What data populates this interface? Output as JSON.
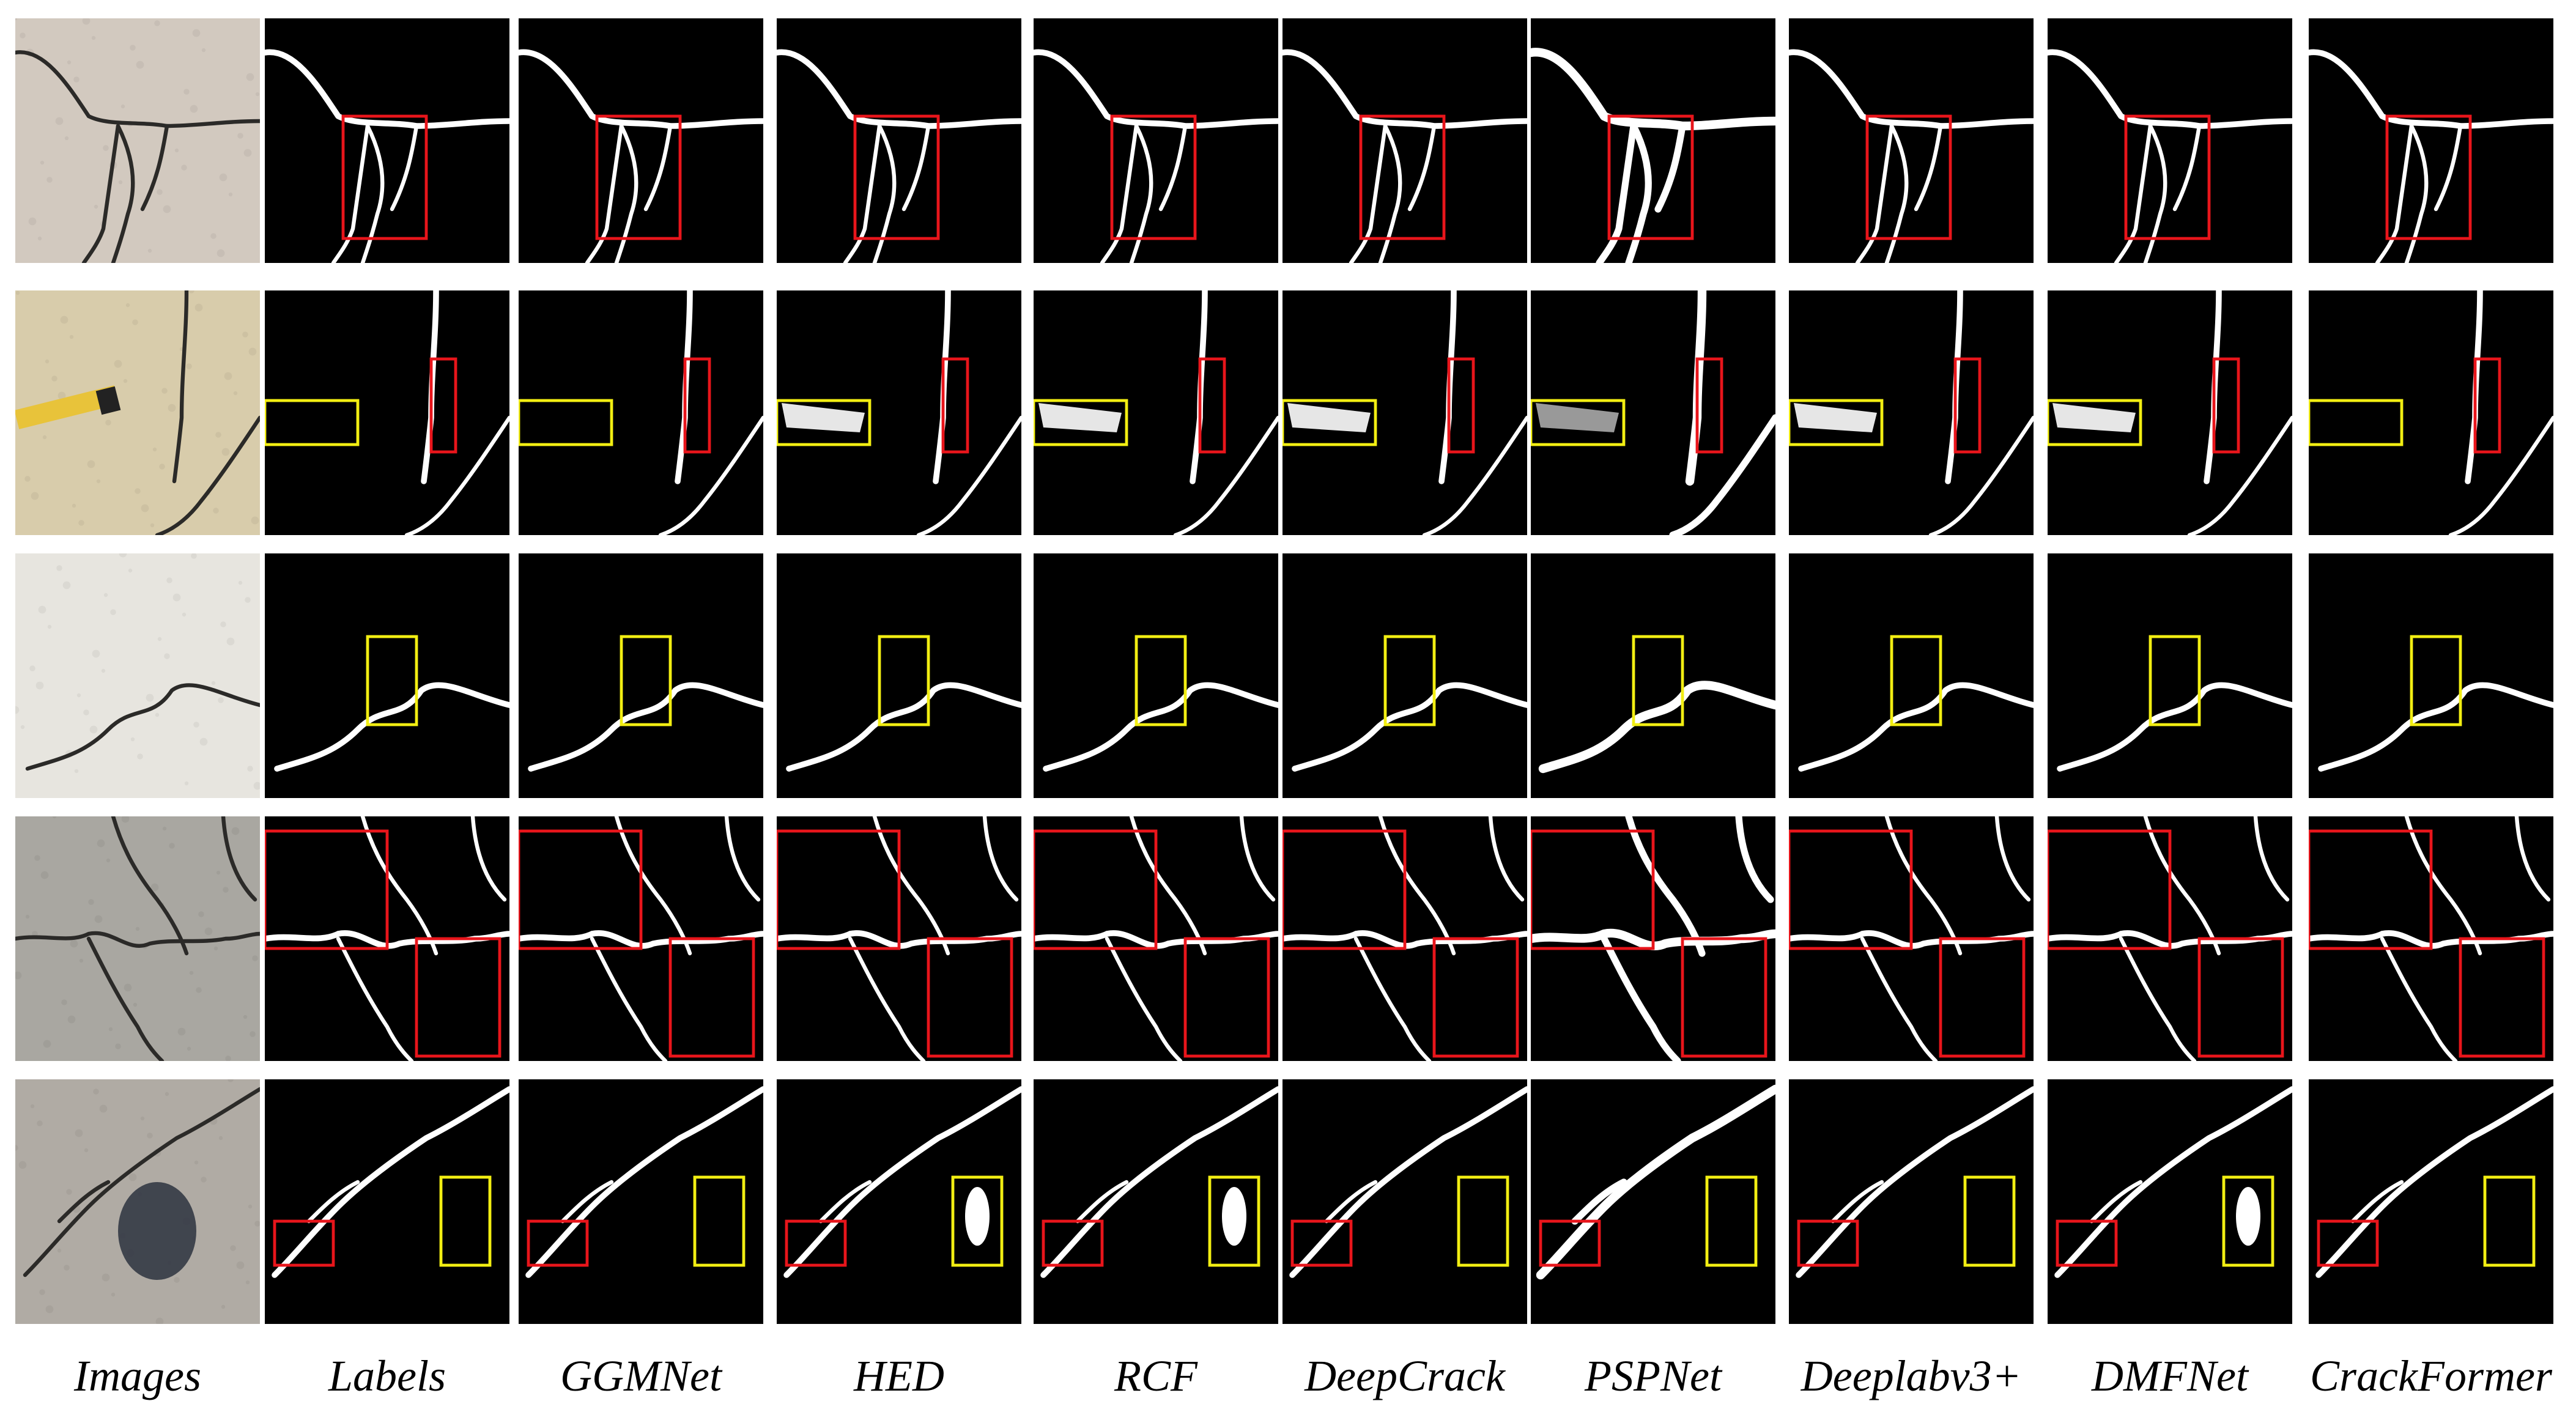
{
  "figure": {
    "columns": [
      "Images",
      "Labels",
      "GGMNet",
      "HED",
      "RCF",
      "DeepCrack",
      "PSPNet",
      "Deeplabv3+",
      "DMFNet",
      "CrackFormer"
    ],
    "rows": [
      {
        "id": "row-1",
        "image_tone": "#d2c9bf",
        "box_color": "#e8151b"
      },
      {
        "id": "row-2",
        "image_tone": "#d8ccab",
        "box_color": "#e8151b",
        "box2_color": "#f2ee12"
      },
      {
        "id": "row-3",
        "image_tone": "#e7e5df",
        "box_color": "#f2ee12"
      },
      {
        "id": "row-4",
        "image_tone": "#a9a7a1",
        "box_color": "#e8151b"
      },
      {
        "id": "row-5",
        "image_tone": "#b0aba4",
        "box_color": "#e8151b",
        "box2_color": "#f2ee12"
      }
    ],
    "colors": {
      "mask_bg": "#000000",
      "crack": "#ffffff",
      "page_bg": "#ffffff"
    }
  }
}
